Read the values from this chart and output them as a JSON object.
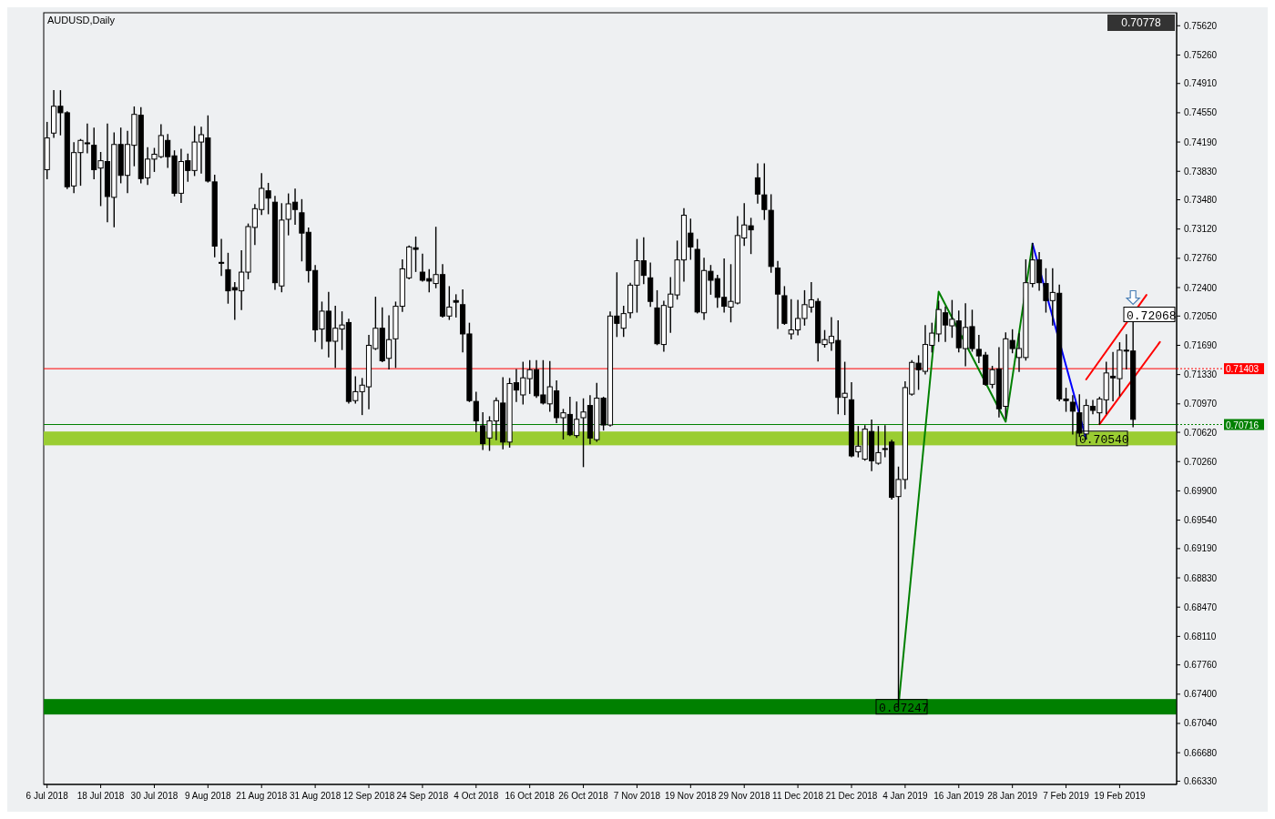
{
  "chart_data": {
    "type": "candlestick",
    "title": "AUDUSD,Daily",
    "categories": [
      "6 Jul 2018",
      null,
      null,
      null,
      null,
      null,
      null,
      null,
      "18 Jul 2018",
      null,
      null,
      null,
      null,
      null,
      null,
      null,
      "30 Jul 2018",
      null,
      null,
      null,
      null,
      null,
      null,
      null,
      "9 Aug 2018",
      null,
      null,
      null,
      null,
      null,
      null,
      null,
      "21 Aug 2018",
      null,
      null,
      null,
      null,
      null,
      null,
      null,
      "31 Aug 2018",
      null,
      null,
      null,
      null,
      null,
      null,
      null,
      "12 Sep 2018",
      null,
      null,
      null,
      null,
      null,
      null,
      null,
      "24 Sep 2018",
      null,
      null,
      null,
      null,
      null,
      null,
      null,
      "4 Oct 2018",
      null,
      null,
      null,
      null,
      null,
      null,
      null,
      "16 Oct 2018",
      null,
      null,
      null,
      null,
      null,
      null,
      null,
      "26 Oct 2018",
      null,
      null,
      null,
      null,
      null,
      null,
      null,
      "7 Nov 2018",
      null,
      null,
      null,
      null,
      null,
      null,
      null,
      "19 Nov 2018",
      null,
      null,
      null,
      null,
      null,
      null,
      null,
      "29 Nov 2018",
      null,
      null,
      null,
      null,
      null,
      null,
      null,
      "11 Dec 2018",
      null,
      null,
      null,
      null,
      null,
      null,
      null,
      "21 Dec 2018",
      null,
      null,
      null,
      null,
      null,
      null,
      null,
      "4 Jan 2019",
      null,
      null,
      null,
      null,
      null,
      null,
      null,
      "16 Jan 2019",
      null,
      null,
      null,
      null,
      null,
      null,
      null,
      "28 Jan 2019",
      null,
      null,
      null,
      null,
      null,
      null,
      null,
      "7 Feb 2019",
      null,
      null,
      null,
      null,
      null,
      null,
      null,
      "19 Feb 2019",
      null,
      null,
      null,
      null,
      null,
      null,
      null,
      null
    ],
    "ohlc": [
      [
        0.7385,
        0.7443,
        0.7374,
        0.7424
      ],
      [
        0.743,
        0.7482,
        0.7425,
        0.7463
      ],
      [
        0.7463,
        0.7482,
        0.7428,
        0.7455
      ],
      [
        0.7455,
        0.7456,
        0.7362,
        0.7364
      ],
      [
        0.7365,
        0.7418,
        0.7357,
        0.7406
      ],
      [
        0.7406,
        0.7422,
        0.7366,
        0.7421
      ],
      [
        0.7418,
        0.7441,
        0.7406,
        0.7417
      ],
      [
        0.7415,
        0.7436,
        0.7374,
        0.7385
      ],
      [
        0.7387,
        0.7406,
        0.7341,
        0.7396
      ],
      [
        0.7395,
        0.7441,
        0.7321,
        0.7352
      ],
      [
        0.7351,
        0.743,
        0.7315,
        0.7416
      ],
      [
        0.7416,
        0.7436,
        0.7369,
        0.7378
      ],
      [
        0.7378,
        0.7432,
        0.7357,
        0.7416
      ],
      [
        0.7415,
        0.7462,
        0.739,
        0.7453
      ],
      [
        0.7452,
        0.7461,
        0.7369,
        0.7374
      ],
      [
        0.7375,
        0.7412,
        0.7367,
        0.7398
      ],
      [
        0.7398,
        0.7411,
        0.7383,
        0.7404
      ],
      [
        0.7401,
        0.744,
        0.74,
        0.7427
      ],
      [
        0.7421,
        0.7428,
        0.7388,
        0.7401
      ],
      [
        0.7402,
        0.7408,
        0.7353,
        0.7356
      ],
      [
        0.7356,
        0.741,
        0.7345,
        0.7395
      ],
      [
        0.7396,
        0.7404,
        0.7371,
        0.7384
      ],
      [
        0.7384,
        0.7438,
        0.7378,
        0.7419
      ],
      [
        0.7419,
        0.7437,
        0.7381,
        0.7428
      ],
      [
        0.7424,
        0.7451,
        0.737,
        0.7371
      ],
      [
        0.737,
        0.7378,
        0.7278,
        0.7291
      ],
      [
        0.7271,
        0.7299,
        0.7255,
        0.727
      ],
      [
        0.7262,
        0.7282,
        0.7221,
        0.7236
      ],
      [
        0.724,
        0.7246,
        0.7201,
        0.7237
      ],
      [
        0.7236,
        0.7285,
        0.7213,
        0.7259
      ],
      [
        0.7259,
        0.7318,
        0.7251,
        0.7315
      ],
      [
        0.7314,
        0.7342,
        0.7293,
        0.7337
      ],
      [
        0.7336,
        0.738,
        0.733,
        0.7362
      ],
      [
        0.7359,
        0.7368,
        0.7331,
        0.735
      ],
      [
        0.7345,
        0.7352,
        0.7238,
        0.7246
      ],
      [
        0.7242,
        0.7343,
        0.7235,
        0.7323
      ],
      [
        0.7324,
        0.7355,
        0.7305,
        0.7343
      ],
      [
        0.7345,
        0.7361,
        0.7318,
        0.7336
      ],
      [
        0.7332,
        0.7348,
        0.7273,
        0.7307
      ],
      [
        0.7308,
        0.7313,
        0.7247,
        0.7261
      ],
      [
        0.7261,
        0.7267,
        0.7174,
        0.7188
      ],
      [
        0.7189,
        0.7222,
        0.7165,
        0.7211
      ],
      [
        0.7211,
        0.7234,
        0.7155,
        0.7174
      ],
      [
        0.7174,
        0.7217,
        0.7142,
        0.719
      ],
      [
        0.7189,
        0.721,
        0.7164,
        0.7194
      ],
      [
        0.7197,
        0.7201,
        0.7098,
        0.71
      ],
      [
        0.7101,
        0.713,
        0.7098,
        0.7112
      ],
      [
        0.7112,
        0.7128,
        0.7084,
        0.712
      ],
      [
        0.7118,
        0.7181,
        0.7091,
        0.7169
      ],
      [
        0.7165,
        0.7228,
        0.7164,
        0.719
      ],
      [
        0.719,
        0.7215,
        0.7149,
        0.715
      ],
      [
        0.7153,
        0.7205,
        0.714,
        0.7176
      ],
      [
        0.7177,
        0.7222,
        0.7142,
        0.7217
      ],
      [
        0.7217,
        0.7274,
        0.7211,
        0.7263
      ],
      [
        0.7252,
        0.7291,
        0.7251,
        0.729
      ],
      [
        0.7289,
        0.7302,
        0.726,
        0.7287
      ],
      [
        0.7259,
        0.7281,
        0.7248,
        0.7249
      ],
      [
        0.7251,
        0.7262,
        0.7235,
        0.7248
      ],
      [
        0.7245,
        0.7314,
        0.724,
        0.7256
      ],
      [
        0.7256,
        0.7268,
        0.7204,
        0.7205
      ],
      [
        0.7205,
        0.7241,
        0.7201,
        0.7216
      ],
      [
        0.7224,
        0.7231,
        0.7204,
        0.7222
      ],
      [
        0.7219,
        0.7237,
        0.7161,
        0.7183
      ],
      [
        0.7183,
        0.7196,
        0.71,
        0.7101
      ],
      [
        0.71,
        0.7111,
        0.7063,
        0.7076
      ],
      [
        0.707,
        0.7086,
        0.7041,
        0.7048
      ],
      [
        0.7055,
        0.7081,
        0.704,
        0.7076
      ],
      [
        0.7076,
        0.7104,
        0.7053,
        0.7101
      ],
      [
        0.7098,
        0.7129,
        0.7042,
        0.705
      ],
      [
        0.705,
        0.7128,
        0.7044,
        0.7122
      ],
      [
        0.7123,
        0.7139,
        0.71,
        0.7114
      ],
      [
        0.7108,
        0.7148,
        0.7097,
        0.7129
      ],
      [
        0.7128,
        0.715,
        0.711,
        0.7139
      ],
      [
        0.7139,
        0.715,
        0.7105,
        0.7107
      ],
      [
        0.7108,
        0.715,
        0.7097,
        0.7098
      ],
      [
        0.7097,
        0.7149,
        0.7088,
        0.7118
      ],
      [
        0.7113,
        0.7125,
        0.7074,
        0.708
      ],
      [
        0.708,
        0.709,
        0.7054,
        0.7086
      ],
      [
        0.7084,
        0.7105,
        0.7058,
        0.7059
      ],
      [
        0.7058,
        0.7099,
        0.7056,
        0.7078
      ],
      [
        0.708,
        0.7103,
        0.702,
        0.7087
      ],
      [
        0.7095,
        0.7107,
        0.7048,
        0.7055
      ],
      [
        0.7053,
        0.7122,
        0.7051,
        0.7104
      ],
      [
        0.7104,
        0.7105,
        0.7065,
        0.7071
      ],
      [
        0.7071,
        0.721,
        0.707,
        0.7205
      ],
      [
        0.7205,
        0.7258,
        0.718,
        0.7196
      ],
      [
        0.719,
        0.7217,
        0.718,
        0.7208
      ],
      [
        0.7209,
        0.7245,
        0.7203,
        0.7243
      ],
      [
        0.7243,
        0.7299,
        0.721,
        0.7273
      ],
      [
        0.7273,
        0.7301,
        0.7245,
        0.7255
      ],
      [
        0.7252,
        0.727,
        0.7217,
        0.7223
      ],
      [
        0.7215,
        0.7236,
        0.717,
        0.7171
      ],
      [
        0.717,
        0.7223,
        0.7162,
        0.7218
      ],
      [
        0.7216,
        0.7252,
        0.7185,
        0.7232
      ],
      [
        0.7231,
        0.7297,
        0.7226,
        0.7274
      ],
      [
        0.7274,
        0.7337,
        0.7248,
        0.7329
      ],
      [
        0.7307,
        0.7324,
        0.7275,
        0.729
      ],
      [
        0.7287,
        0.7299,
        0.7209,
        0.721
      ],
      [
        0.7209,
        0.7276,
        0.7201,
        0.7261
      ],
      [
        0.726,
        0.7267,
        0.7232,
        0.7249
      ],
      [
        0.7251,
        0.7255,
        0.7216,
        0.7228
      ],
      [
        0.7228,
        0.7275,
        0.721,
        0.7217
      ],
      [
        0.7216,
        0.7268,
        0.7198,
        0.7223
      ],
      [
        0.7221,
        0.7327,
        0.722,
        0.7304
      ],
      [
        0.7301,
        0.7343,
        0.7292,
        0.7317
      ],
      [
        0.7316,
        0.7325,
        0.7282,
        0.7311
      ],
      [
        0.7375,
        0.7392,
        0.7344,
        0.7355
      ],
      [
        0.7354,
        0.7392,
        0.7324,
        0.7336
      ],
      [
        0.7335,
        0.7354,
        0.7259,
        0.7266
      ],
      [
        0.7264,
        0.7272,
        0.719,
        0.7232
      ],
      [
        0.723,
        0.7241,
        0.7195,
        0.7196
      ],
      [
        0.7183,
        0.7225,
        0.7177,
        0.7188
      ],
      [
        0.7188,
        0.7224,
        0.7182,
        0.7202
      ],
      [
        0.7202,
        0.7236,
        0.7194,
        0.7219
      ],
      [
        0.7216,
        0.7246,
        0.721,
        0.7225
      ],
      [
        0.7223,
        0.7226,
        0.715,
        0.7172
      ],
      [
        0.717,
        0.7187,
        0.7167,
        0.7176
      ],
      [
        0.7172,
        0.7203,
        0.7163,
        0.718
      ],
      [
        0.7175,
        0.7199,
        0.7085,
        0.7105
      ],
      [
        0.7105,
        0.7148,
        0.7084,
        0.711
      ],
      [
        0.7102,
        0.7123,
        0.7032,
        0.7033
      ],
      [
        0.7038,
        0.7069,
        0.7032,
        0.7045
      ],
      [
        0.7029,
        0.707,
        0.7028,
        0.7066
      ],
      [
        0.7063,
        0.7077,
        0.7015,
        0.7027
      ],
      [
        0.7024,
        0.7069,
        0.7023,
        0.7037
      ],
      [
        0.7042,
        0.707,
        0.7032,
        0.7041
      ],
      [
        0.705,
        0.7052,
        0.698,
        0.6982
      ],
      [
        0.6983,
        0.7019,
        0.6725,
        0.7004
      ],
      [
        0.7004,
        0.7124,
        0.6993,
        0.7117
      ],
      [
        0.7109,
        0.715,
        0.7108,
        0.7148
      ],
      [
        0.7147,
        0.7156,
        0.7115,
        0.7139
      ],
      [
        0.7137,
        0.7193,
        0.7134,
        0.717
      ],
      [
        0.7169,
        0.7196,
        0.7161,
        0.7184
      ],
      [
        0.7183,
        0.7223,
        0.7174,
        0.7213
      ],
      [
        0.7209,
        0.7216,
        0.7174,
        0.7194
      ],
      [
        0.7193,
        0.7224,
        0.7179,
        0.7201
      ],
      [
        0.7199,
        0.7211,
        0.7161,
        0.7166
      ],
      [
        0.7165,
        0.722,
        0.7144,
        0.7191
      ],
      [
        0.7192,
        0.7212,
        0.7162,
        0.7165
      ],
      [
        0.7164,
        0.7181,
        0.7148,
        0.7156
      ],
      [
        0.7157,
        0.716,
        0.712,
        0.7121
      ],
      [
        0.7121,
        0.7143,
        0.7117,
        0.7139
      ],
      [
        0.714,
        0.7166,
        0.7081,
        0.7091
      ],
      [
        0.7094,
        0.7184,
        0.708,
        0.7177
      ],
      [
        0.7175,
        0.7188,
        0.716,
        0.7165
      ],
      [
        0.7154,
        0.7183,
        0.7137,
        0.7165
      ],
      [
        0.7154,
        0.7274,
        0.7151,
        0.7246
      ],
      [
        0.7245,
        0.7294,
        0.7241,
        0.7274
      ],
      [
        0.7274,
        0.7283,
        0.7237,
        0.7246
      ],
      [
        0.7245,
        0.7263,
        0.721,
        0.7224
      ],
      [
        0.7224,
        0.7263,
        0.7194,
        0.7234
      ],
      [
        0.7233,
        0.7243,
        0.7101,
        0.7103
      ],
      [
        0.7103,
        0.7116,
        0.7088,
        0.7101
      ],
      [
        0.7099,
        0.7107,
        0.706,
        0.7088
      ],
      [
        0.7086,
        0.7108,
        0.7057,
        0.7061
      ],
      [
        0.706,
        0.7102,
        0.7054,
        0.7095
      ],
      [
        0.7094,
        0.7101,
        0.7085,
        0.7089
      ],
      [
        0.7086,
        0.7105,
        0.7072,
        0.7103
      ],
      [
        0.7102,
        0.7148,
        0.7085,
        0.7135
      ],
      [
        0.7131,
        0.716,
        0.7101,
        0.7129
      ],
      [
        0.7128,
        0.7172,
        0.7107,
        0.7163
      ],
      [
        0.7163,
        0.7182,
        0.714,
        0.7162
      ],
      [
        0.7162,
        0.7207,
        0.7069,
        0.7078
      ],
      null,
      null,
      null,
      null,
      null,
      null
    ],
    "series": [
      {
        "type": "line",
        "color": "#008000",
        "values": [
          null,
          null,
          null,
          null,
          null,
          null,
          null,
          null,
          null,
          null,
          null,
          null,
          null,
          null,
          null,
          null,
          null,
          null,
          null,
          null,
          null,
          null,
          null,
          null,
          null,
          null,
          null,
          null,
          null,
          null,
          null,
          null,
          null,
          null,
          null,
          null,
          null,
          null,
          null,
          null,
          null,
          null,
          null,
          null,
          null,
          null,
          null,
          null,
          null,
          null,
          null,
          null,
          null,
          null,
          null,
          null,
          null,
          null,
          null,
          null,
          null,
          null,
          null,
          null,
          null,
          null,
          null,
          null,
          null,
          null,
          null,
          null,
          null,
          null,
          null,
          null,
          null,
          null,
          null,
          null,
          null,
          null,
          null,
          null,
          null,
          null,
          null,
          null,
          null,
          null,
          null,
          null,
          null,
          null,
          null,
          null,
          null,
          null,
          null,
          null,
          null,
          null,
          null,
          null,
          null,
          null,
          null,
          null,
          null,
          null,
          null,
          null,
          null,
          null,
          null,
          null,
          null,
          null,
          null,
          null,
          null,
          null,
          null,
          null,
          null,
          null,
          null,
          0.6725,
          null,
          null,
          null,
          null,
          null,
          0.7235,
          null,
          null,
          null,
          null,
          null,
          null,
          null,
          null,
          null,
          0.7075,
          null,
          null,
          null,
          0.7294,
          null,
          null,
          null,
          null,
          null,
          null,
          null,
          null,
          null,
          null,
          null,
          null,
          null,
          null,
          null,
          null,
          null,
          null,
          null,
          null,
          null
        ]
      },
      {
        "type": "line",
        "color": "#0000ff",
        "values": [
          null,
          null,
          null,
          null,
          null,
          null,
          null,
          null,
          null,
          null,
          null,
          null,
          null,
          null,
          null,
          null,
          null,
          null,
          null,
          null,
          null,
          null,
          null,
          null,
          null,
          null,
          null,
          null,
          null,
          null,
          null,
          null,
          null,
          null,
          null,
          null,
          null,
          null,
          null,
          null,
          null,
          null,
          null,
          null,
          null,
          null,
          null,
          null,
          null,
          null,
          null,
          null,
          null,
          null,
          null,
          null,
          null,
          null,
          null,
          null,
          null,
          null,
          null,
          null,
          null,
          null,
          null,
          null,
          null,
          null,
          null,
          null,
          null,
          null,
          null,
          null,
          null,
          null,
          null,
          null,
          null,
          null,
          null,
          null,
          null,
          null,
          null,
          null,
          null,
          null,
          null,
          null,
          null,
          null,
          null,
          null,
          null,
          null,
          null,
          null,
          null,
          null,
          null,
          null,
          null,
          null,
          null,
          null,
          null,
          null,
          null,
          null,
          null,
          null,
          null,
          null,
          null,
          null,
          null,
          null,
          null,
          null,
          null,
          null,
          null,
          null,
          null,
          null,
          null,
          null,
          null,
          null,
          null,
          null,
          null,
          null,
          null,
          null,
          null,
          null,
          null,
          null,
          null,
          null,
          null,
          null,
          null,
          0.7294,
          null,
          null,
          null,
          null,
          null,
          null,
          null,
          0.7054,
          null,
          null,
          null,
          null,
          null,
          null,
          null,
          null,
          null,
          null,
          null,
          null,
          null
        ]
      },
      {
        "type": "line",
        "color": "#ff0000",
        "values": [
          null,
          null,
          null,
          null,
          null,
          null,
          null,
          null,
          null,
          null,
          null,
          null,
          null,
          null,
          null,
          null,
          null,
          null,
          null,
          null,
          null,
          null,
          null,
          null,
          null,
          null,
          null,
          null,
          null,
          null,
          null,
          null,
          null,
          null,
          null,
          null,
          null,
          null,
          null,
          null,
          null,
          null,
          null,
          null,
          null,
          null,
          null,
          null,
          null,
          null,
          null,
          null,
          null,
          null,
          null,
          null,
          null,
          null,
          null,
          null,
          null,
          null,
          null,
          null,
          null,
          null,
          null,
          null,
          null,
          null,
          null,
          null,
          null,
          null,
          null,
          null,
          null,
          null,
          null,
          null,
          null,
          null,
          null,
          null,
          null,
          null,
          null,
          null,
          null,
          null,
          null,
          null,
          null,
          null,
          null,
          null,
          null,
          null,
          null,
          null,
          null,
          null,
          null,
          null,
          null,
          null,
          null,
          null,
          null,
          null,
          null,
          null,
          null,
          null,
          null,
          null,
          null,
          null,
          null,
          null,
          null,
          null,
          null,
          null,
          null,
          null,
          null,
          null,
          null,
          null,
          null,
          null,
          null,
          null,
          null,
          null,
          null,
          null,
          null,
          null,
          null,
          null,
          null,
          null,
          null,
          null,
          null,
          null,
          null,
          null,
          null,
          null,
          null,
          null,
          null,
          0.7127,
          null,
          null,
          null,
          null,
          null,
          null,
          null,
          null,
          0.7231,
          null,
          null,
          null,
          null
        ]
      },
      {
        "type": "line",
        "color": "#ff0000",
        "values": [
          null,
          null,
          null,
          null,
          null,
          null,
          null,
          null,
          null,
          null,
          null,
          null,
          null,
          null,
          null,
          null,
          null,
          null,
          null,
          null,
          null,
          null,
          null,
          null,
          null,
          null,
          null,
          null,
          null,
          null,
          null,
          null,
          null,
          null,
          null,
          null,
          null,
          null,
          null,
          null,
          null,
          null,
          null,
          null,
          null,
          null,
          null,
          null,
          null,
          null,
          null,
          null,
          null,
          null,
          null,
          null,
          null,
          null,
          null,
          null,
          null,
          null,
          null,
          null,
          null,
          null,
          null,
          null,
          null,
          null,
          null,
          null,
          null,
          null,
          null,
          null,
          null,
          null,
          null,
          null,
          null,
          null,
          null,
          null,
          null,
          null,
          null,
          null,
          null,
          null,
          null,
          null,
          null,
          null,
          null,
          null,
          null,
          null,
          null,
          null,
          null,
          null,
          null,
          null,
          null,
          null,
          null,
          null,
          null,
          null,
          null,
          null,
          null,
          null,
          null,
          null,
          null,
          null,
          null,
          null,
          null,
          null,
          null,
          null,
          null,
          null,
          null,
          null,
          null,
          null,
          null,
          null,
          null,
          null,
          null,
          null,
          null,
          null,
          null,
          null,
          null,
          null,
          null,
          null,
          null,
          null,
          null,
          null,
          null,
          null,
          null,
          null,
          null,
          null,
          null,
          null,
          null,
          0.7072,
          null,
          null,
          null,
          null,
          null,
          null,
          null,
          null,
          0.7173,
          null,
          null
        ]
      }
    ],
    "ylim": [
      0.6629,
      0.7578
    ],
    "yticks": [
      {
        "value": 0.7562,
        "label": "0.75620"
      },
      {
        "value": 0.7526,
        "label": "0.75260"
      },
      {
        "value": 0.7491,
        "label": "0.74910"
      },
      {
        "value": 0.7455,
        "label": "0.74550"
      },
      {
        "value": 0.7419,
        "label": "0.74190"
      },
      {
        "value": 0.7383,
        "label": "0.73830"
      },
      {
        "value": 0.7348,
        "label": "0.73480"
      },
      {
        "value": 0.7312,
        "label": "0.73120"
      },
      {
        "value": 0.7276,
        "label": "0.72760"
      },
      {
        "value": 0.724,
        "label": "0.72400"
      },
      {
        "value": 0.7205,
        "label": "0.72050"
      },
      {
        "value": 0.7169,
        "label": "0.71690"
      },
      {
        "value": 0.7133,
        "label": "0.71330"
      },
      {
        "value": 0.7097,
        "label": "0.70970"
      },
      {
        "value": 0.7062,
        "label": "0.70620"
      },
      {
        "value": 0.7026,
        "label": "0.70260"
      },
      {
        "value": 0.699,
        "label": "0.69900"
      },
      {
        "value": 0.6954,
        "label": "0.69540"
      },
      {
        "value": 0.6919,
        "label": "0.69190"
      },
      {
        "value": 0.6883,
        "label": "0.68830"
      },
      {
        "value": 0.6847,
        "label": "0.68470"
      },
      {
        "value": 0.6811,
        "label": "0.68110"
      },
      {
        "value": 0.6776,
        "label": "0.67760"
      },
      {
        "value": 0.674,
        "label": "0.67400"
      },
      {
        "value": 0.6704,
        "label": "0.67040"
      },
      {
        "value": 0.6668,
        "label": "0.66680"
      },
      {
        "value": 0.6633,
        "label": "0.66330"
      }
    ],
    "ref_lines": [
      {
        "axis": "y",
        "value": 0.71403,
        "label": "0.71403",
        "color": "#ff0000"
      },
      {
        "axis": "y",
        "value": 0.70716,
        "label": "0.70716",
        "color": "#008000"
      }
    ],
    "bands": [
      {
        "axis": "y",
        "from": 0.7046,
        "to": 0.7063,
        "label": "0.70540",
        "color": "#9acd32"
      },
      {
        "axis": "y",
        "from": 0.6715,
        "to": 0.6734,
        "label": "0.67247",
        "color": "#008000"
      }
    ],
    "annotations": [
      "0.70778",
      "0.72068"
    ]
  }
}
